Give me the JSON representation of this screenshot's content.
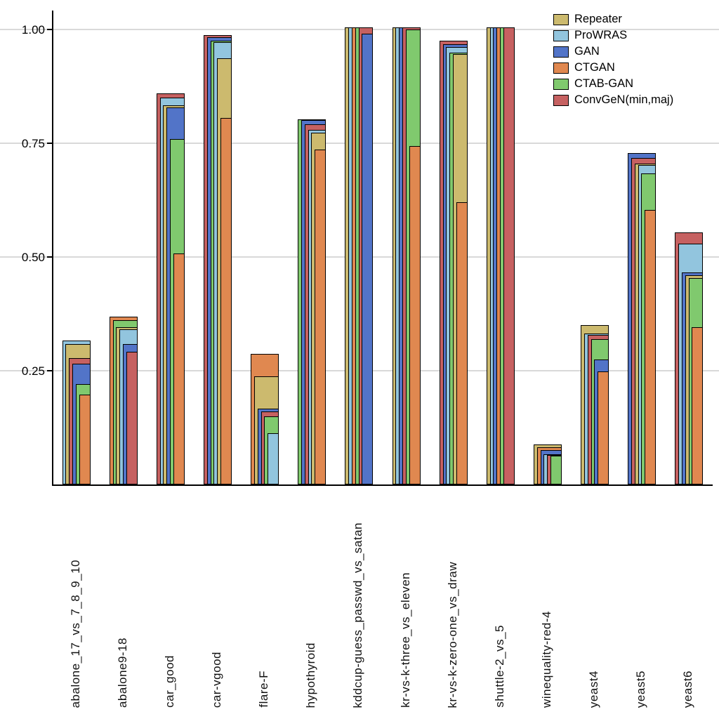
{
  "chart_data": {
    "type": "bar",
    "style": "overlapping-nested-bars-right-aligned-widest-in-back",
    "title": "",
    "xlabel": "",
    "ylabel": "",
    "ylim": [
      0,
      1.04
    ],
    "grid": "horizontal",
    "yticks": [
      0.25,
      0.5,
      0.75,
      1.0
    ],
    "ytick_labels": [
      "0.25",
      "0.50",
      "0.75",
      "1.00"
    ],
    "legend_position": "top-right",
    "legend_entries": [
      {
        "label": "Repeater",
        "key": "Repeater"
      },
      {
        "label": "ProWRAS",
        "key": "ProWRAS"
      },
      {
        "label": "GAN",
        "key": "GAN"
      },
      {
        "label": "CTGAN",
        "key": "CTGAN"
      },
      {
        "label": "CTAB-GAN",
        "key": "CTAB-GAN"
      },
      {
        "label": "ConvGeN(min,maj)",
        "key": "ConvGeN"
      }
    ],
    "series_colors": {
      "Repeater": "#ccba6e",
      "ProWRAS": "#92c5de",
      "GAN": "#5274c8",
      "CTGAN": "#e08850",
      "CTAB-GAN": "#80c96e",
      "ConvGeN": "#c66161"
    },
    "categories": [
      "abalone_17_vs_7_8_9_10",
      "abalone9-18",
      "car_good",
      "car-vgood",
      "flare-F",
      "hypothyroid",
      "kddcup-guess_passwd_vs_satan",
      "kr-vs-k-three_vs_eleven",
      "kr-vs-k-zero-one_vs_draw",
      "shuttle-2_vs_5",
      "winequality-red-4",
      "yeast4",
      "yeast5",
      "yeast6"
    ],
    "groups": [
      {
        "category": "abalone_17_vs_7_8_9_10",
        "bars": [
          {
            "method": "ProWRAS",
            "value": 0.317
          },
          {
            "method": "Repeater",
            "value": 0.308
          },
          {
            "method": "ConvGeN",
            "value": 0.278
          },
          {
            "method": "GAN",
            "value": 0.266
          },
          {
            "method": "CTAB-GAN",
            "value": 0.221
          },
          {
            "method": "CTGAN",
            "value": 0.197
          }
        ]
      },
      {
        "category": "abalone9-18",
        "bars": [
          {
            "method": "CTGAN",
            "value": 0.369
          },
          {
            "method": "CTAB-GAN",
            "value": 0.361
          },
          {
            "method": "Repeater",
            "value": 0.345
          },
          {
            "method": "ProWRAS",
            "value": 0.341
          },
          {
            "method": "GAN",
            "value": 0.309
          },
          {
            "method": "ConvGeN",
            "value": 0.292
          }
        ]
      },
      {
        "category": "car_good",
        "bars": [
          {
            "method": "ConvGeN",
            "value": 0.86
          },
          {
            "method": "ProWRAS",
            "value": 0.85
          },
          {
            "method": "Repeater",
            "value": 0.834
          },
          {
            "method": "GAN",
            "value": 0.828
          },
          {
            "method": "CTAB-GAN",
            "value": 0.759
          },
          {
            "method": "CTGAN",
            "value": 0.508
          }
        ]
      },
      {
        "category": "car-vgood",
        "bars": [
          {
            "method": "ConvGeN",
            "value": 0.987
          },
          {
            "method": "GAN",
            "value": 0.983
          },
          {
            "method": "CTAB-GAN",
            "value": 0.976
          },
          {
            "method": "ProWRAS",
            "value": 0.972
          },
          {
            "method": "Repeater",
            "value": 0.937
          },
          {
            "method": "CTGAN",
            "value": 0.806
          }
        ]
      },
      {
        "category": "flare-F",
        "bars": [
          {
            "method": "CTGAN",
            "value": 0.287
          },
          {
            "method": "Repeater",
            "value": 0.238
          },
          {
            "method": "GAN",
            "value": 0.167
          },
          {
            "method": "ConvGeN",
            "value": 0.16
          },
          {
            "method": "CTAB-GAN",
            "value": 0.149
          },
          {
            "method": "ProWRAS",
            "value": 0.112
          }
        ]
      },
      {
        "category": "hypothyroid",
        "bars": [
          {
            "method": "CTAB-GAN",
            "value": 0.803
          },
          {
            "method": "GAN",
            "value": 0.801
          },
          {
            "method": "ConvGeN",
            "value": 0.792
          },
          {
            "method": "ProWRAS",
            "value": 0.779
          },
          {
            "method": "Repeater",
            "value": 0.773
          },
          {
            "method": "CTGAN",
            "value": 0.736
          }
        ]
      },
      {
        "category": "kddcup-guess_passwd_vs_satan",
        "bars": [
          {
            "method": "Repeater",
            "value": 1.005
          },
          {
            "method": "ProWRAS",
            "value": 1.005
          },
          {
            "method": "CTGAN",
            "value": 1.005
          },
          {
            "method": "CTAB-GAN",
            "value": 1.005
          },
          {
            "method": "ConvGeN",
            "value": 1.005
          },
          {
            "method": "GAN",
            "value": 0.99
          }
        ]
      },
      {
        "category": "kr-vs-k-three_vs_eleven",
        "bars": [
          {
            "method": "Repeater",
            "value": 1.005
          },
          {
            "method": "ProWRAS",
            "value": 1.005
          },
          {
            "method": "GAN",
            "value": 1.005
          },
          {
            "method": "ConvGeN",
            "value": 1.005
          },
          {
            "method": "CTAB-GAN",
            "value": 1.0
          },
          {
            "method": "CTGAN",
            "value": 0.744
          }
        ]
      },
      {
        "category": "kr-vs-k-zero-one_vs_draw",
        "bars": [
          {
            "method": "ConvGeN",
            "value": 0.975
          },
          {
            "method": "GAN",
            "value": 0.968
          },
          {
            "method": "ProWRAS",
            "value": 0.961
          },
          {
            "method": "CTAB-GAN",
            "value": 0.949
          },
          {
            "method": "Repeater",
            "value": 0.946
          },
          {
            "method": "CTGAN",
            "value": 0.62
          }
        ]
      },
      {
        "category": "shuttle-2_vs_5",
        "bars": [
          {
            "method": "Repeater",
            "value": 1.005
          },
          {
            "method": "ProWRAS",
            "value": 1.005
          },
          {
            "method": "GAN",
            "value": 1.005
          },
          {
            "method": "CTGAN",
            "value": 1.005
          },
          {
            "method": "CTAB-GAN",
            "value": 1.005
          },
          {
            "method": "ConvGeN",
            "value": 1.005
          }
        ]
      },
      {
        "category": "winequality-red-4",
        "bars": [
          {
            "method": "Repeater",
            "value": 0.088
          },
          {
            "method": "CTGAN",
            "value": 0.082
          },
          {
            "method": "GAN",
            "value": 0.076
          },
          {
            "method": "ProWRAS",
            "value": 0.067
          },
          {
            "method": "ConvGeN",
            "value": 0.065
          },
          {
            "method": "CTAB-GAN",
            "value": 0.064
          }
        ]
      },
      {
        "category": "yeast4",
        "bars": [
          {
            "method": "Repeater",
            "value": 0.35
          },
          {
            "method": "ProWRAS",
            "value": 0.332
          },
          {
            "method": "ConvGeN",
            "value": 0.328
          },
          {
            "method": "CTAB-GAN",
            "value": 0.319
          },
          {
            "method": "GAN",
            "value": 0.275
          },
          {
            "method": "CTGAN",
            "value": 0.248
          }
        ]
      },
      {
        "category": "yeast5",
        "bars": [
          {
            "method": "GAN",
            "value": 0.729
          },
          {
            "method": "ConvGeN",
            "value": 0.718
          },
          {
            "method": "Repeater",
            "value": 0.706
          },
          {
            "method": "ProWRAS",
            "value": 0.702
          },
          {
            "method": "CTAB-GAN",
            "value": 0.684
          },
          {
            "method": "CTGAN",
            "value": 0.604
          }
        ]
      },
      {
        "category": "yeast6",
        "bars": [
          {
            "method": "ConvGeN",
            "value": 0.554
          },
          {
            "method": "ProWRAS",
            "value": 0.53
          },
          {
            "method": "GAN",
            "value": 0.466
          },
          {
            "method": "Repeater",
            "value": 0.46
          },
          {
            "method": "CTAB-GAN",
            "value": 0.454
          },
          {
            "method": "CTGAN",
            "value": 0.346
          }
        ]
      }
    ]
  }
}
